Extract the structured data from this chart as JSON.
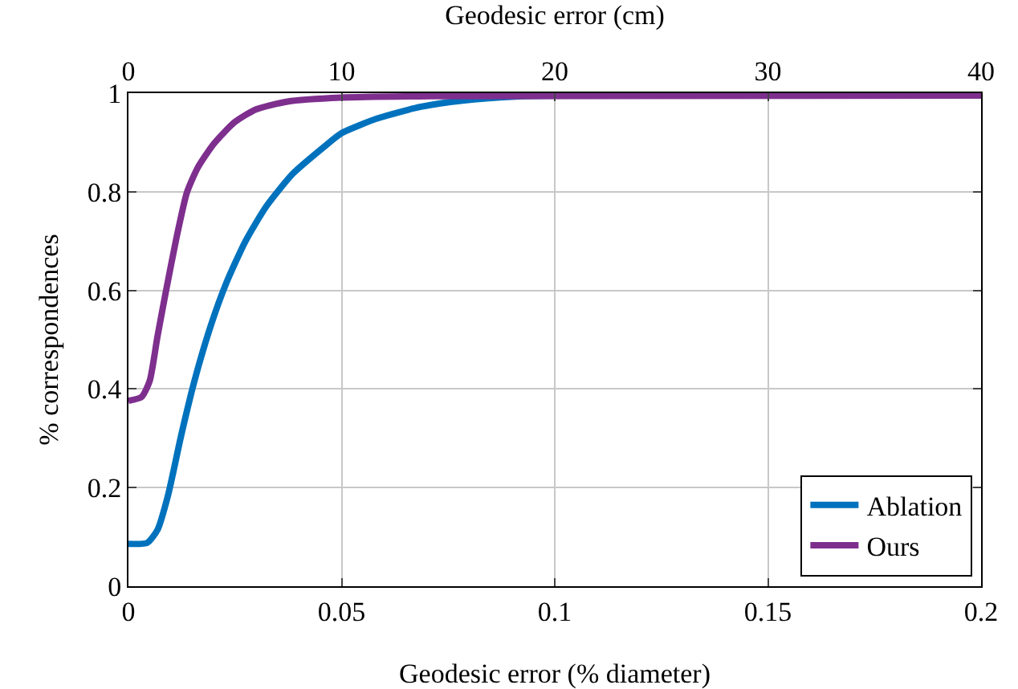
{
  "chart_data": {
    "type": "line",
    "xlabel": "Geodesic error (% diameter)",
    "x2label": "Geodesic error (cm)",
    "ylabel": "% correspondences",
    "xlim": [
      0,
      0.2
    ],
    "xticks": [
      0,
      0.05,
      0.1,
      0.15,
      0.2
    ],
    "x2lim": [
      0,
      40
    ],
    "x2ticks": [
      0,
      10,
      20,
      30,
      40
    ],
    "ylim": [
      0,
      1
    ],
    "yticks": [
      0,
      0.2,
      0.4,
      0.6,
      0.8,
      1
    ],
    "grid": true,
    "legend": "bottom right",
    "line_style": "solid",
    "marker": "none",
    "series": [
      {
        "name": "Ablation",
        "color": "#0072bd",
        "x": [
          0,
          0.0044,
          0.0068,
          0.0093,
          0.0124,
          0.0155,
          0.0193,
          0.023,
          0.0274,
          0.0323,
          0.0386,
          0.046,
          0.05,
          0.0585,
          0.0684,
          0.0784,
          0.0908,
          0.1,
          0.2
        ],
        "values": [
          0.086,
          0.088,
          0.114,
          0.185,
          0.307,
          0.417,
          0.528,
          0.616,
          0.699,
          0.77,
          0.837,
          0.892,
          0.919,
          0.949,
          0.972,
          0.985,
          0.993,
          0.995,
          0.995
        ]
      },
      {
        "name": "Ours",
        "color": "#7e2f8e",
        "x": [
          0,
          0.0031,
          0.005,
          0.0068,
          0.0087,
          0.0112,
          0.0137,
          0.0162,
          0.02,
          0.0249,
          0.0299,
          0.0373,
          0.05,
          0.071,
          0.2
        ],
        "values": [
          0.376,
          0.384,
          0.417,
          0.506,
          0.594,
          0.704,
          0.798,
          0.848,
          0.897,
          0.941,
          0.967,
          0.983,
          0.991,
          0.994,
          0.995
        ]
      }
    ]
  }
}
